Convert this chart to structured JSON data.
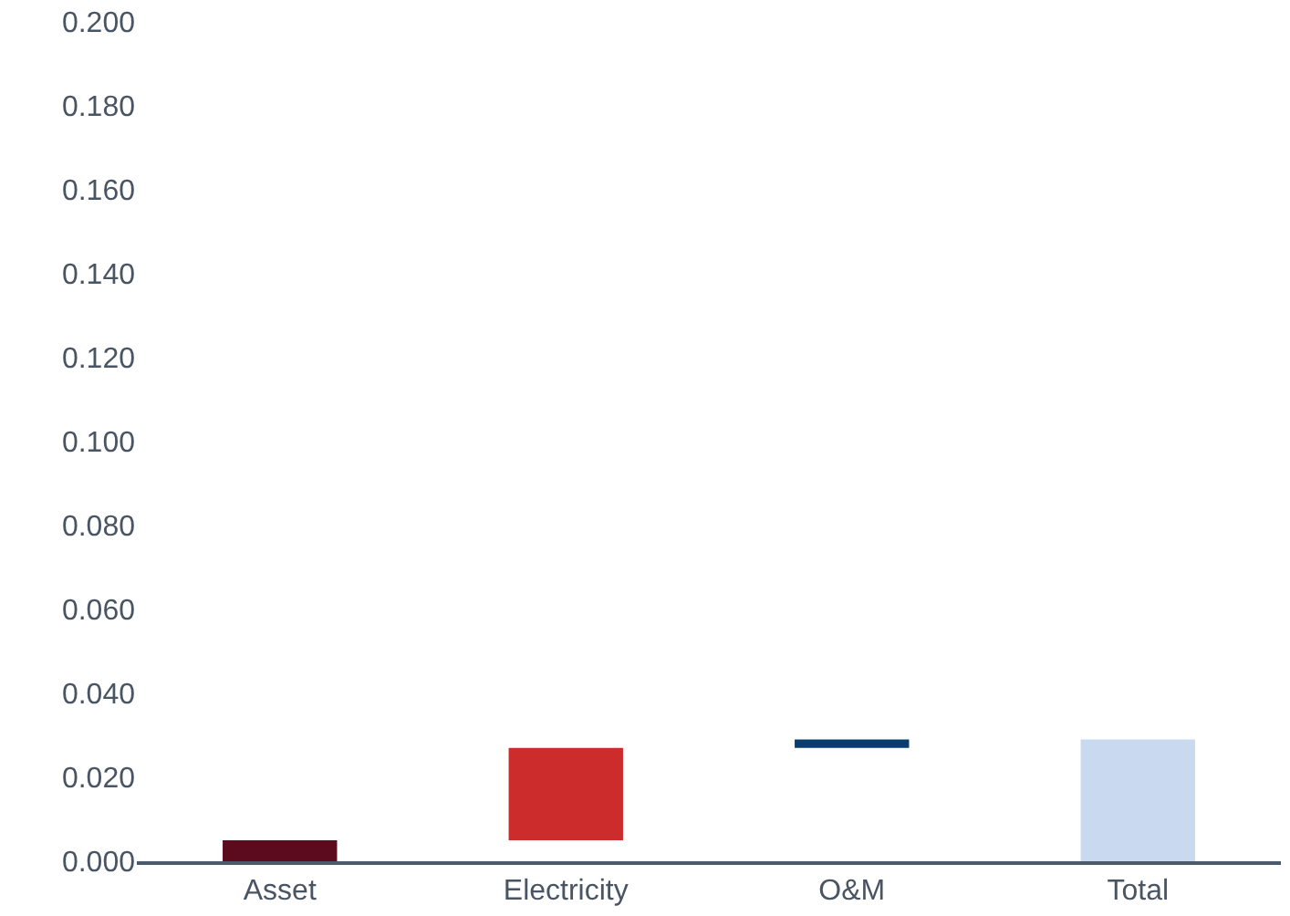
{
  "chart_data": {
    "type": "bar",
    "categories": [
      "Asset",
      "Electricity",
      "O&M",
      "Total"
    ],
    "values": [
      0.005,
      0.022,
      0.002,
      0.029
    ],
    "base": [
      0,
      0.005,
      0.027,
      0
    ],
    "colors": [
      "#5c0a1e",
      "#cc2c2c",
      "#0a3d6e",
      "#c9daf0"
    ],
    "ylim": [
      0,
      0.2
    ],
    "yticks": [
      {
        "value": 0,
        "label": "0.000"
      },
      {
        "value": 0.02,
        "label": "0.020"
      },
      {
        "value": 0.04,
        "label": "0.040"
      },
      {
        "value": 0.06,
        "label": "0.060"
      },
      {
        "value": 0.08,
        "label": "0.080"
      },
      {
        "value": 0.1,
        "label": "0.100"
      },
      {
        "value": 0.12,
        "label": "0.120"
      },
      {
        "value": 0.14,
        "label": "0.140"
      },
      {
        "value": 0.16,
        "label": "0.160"
      },
      {
        "value": 0.18,
        "label": "0.180"
      },
      {
        "value": 0.2,
        "label": "0.200"
      }
    ],
    "grid": false
  }
}
